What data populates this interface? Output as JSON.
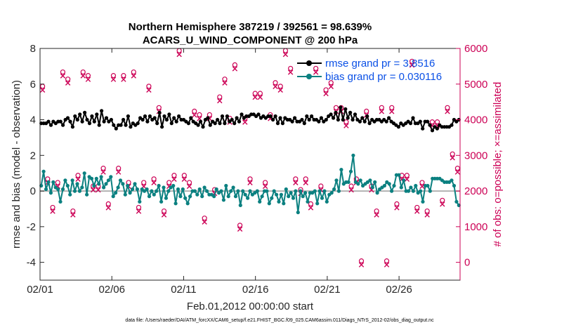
{
  "chart_data": {
    "type": "line",
    "title": "Northern Hemisphere 387219 / 392561 = 98.639%",
    "subtitle": "ACARS_U_WIND_COMPONENT @ 200 hPa",
    "xlabel": "Feb.01,2012 00:00:00 start",
    "ylabel": "rmse and bias (model - observation)",
    "ylabel_right": "# of obs: o=possible; ×=assimilated",
    "footer": "data file: /Users/raeder/DAI/ATM_forcXX/CAM6_setup/f.e21.FHIST_BGC.f09_025.CAM6assim.011/Diags_NTrS_2012-02/obs_diag_output.nc",
    "ylim": [
      -5,
      8
    ],
    "ylim_right": [
      -500,
      6000
    ],
    "xlim": [
      0,
      29.25
    ],
    "x_ticks": [
      0,
      5,
      10,
      15,
      20,
      25
    ],
    "x_tick_labels": [
      "02/01",
      "02/06",
      "02/11",
      "02/16",
      "02/21",
      "02/26"
    ],
    "y_ticks": [
      -4,
      -2,
      0,
      2,
      4,
      6,
      8
    ],
    "y_tick_labels": [
      "-4",
      "-2",
      "0",
      "2",
      "4",
      "6",
      "8"
    ],
    "y_ticks_right": [
      0,
      1000,
      2000,
      3000,
      4000,
      5000,
      6000
    ],
    "y_tick_labels_right": [
      "0",
      "1000",
      "2000",
      "3000",
      "4000",
      "5000",
      "6000"
    ],
    "reference_line_y": 0,
    "colors": {
      "rmse": "#000000",
      "bias": "#0b8080",
      "obs": "#cc0055",
      "zero": "#b3b3b3",
      "legend_text": "#0a50e6"
    },
    "series": [
      {
        "name": "rmse grand pr = 3.8516",
        "values": [
          3.8,
          3.8,
          3.8,
          3.9,
          3.7,
          3.9,
          3.8,
          3.9,
          3.9,
          3.7,
          4.0,
          4.1,
          3.9,
          3.6,
          4.2,
          4.0,
          4.3,
          3.9,
          4.4,
          4.0,
          3.8,
          4.2,
          3.9,
          4.3,
          3.7,
          4.5,
          3.9,
          4.1,
          3.9,
          4.0,
          3.7,
          3.5,
          3.7,
          3.7,
          4.0,
          3.7,
          4.2,
          3.6,
          3.8,
          3.7,
          3.8,
          4.1,
          4.0,
          4.2,
          3.9,
          4.2,
          4.0,
          4.1,
          3.8,
          4.4,
          3.6,
          4.2,
          4.0,
          4.3,
          3.8,
          4.1,
          3.9,
          4.2,
          4.0,
          4.0,
          3.9,
          3.8,
          4.1,
          3.9,
          3.8,
          3.7,
          3.9,
          3.6,
          4.0,
          4.1,
          3.7,
          3.9,
          3.8,
          4.0,
          3.8,
          4.2,
          3.8,
          4.2,
          3.9,
          4.0,
          3.8,
          4.1,
          3.9,
          4.3,
          4.1,
          4.2,
          4.2,
          4.3,
          4.3,
          4.2,
          4.3,
          4.1,
          4.2,
          4.1,
          4.2,
          4.2,
          4.0,
          4.2,
          3.8,
          4.1,
          3.8,
          4.1,
          4.0,
          4.0,
          3.9,
          4.1,
          3.9,
          3.9,
          4.0,
          3.8,
          4.2,
          4.0,
          4.2,
          4.0,
          4.0,
          3.9,
          4.1,
          3.9,
          4.0,
          4.2,
          4.3,
          4.1,
          4.4,
          4.0,
          4.7,
          4.0,
          4.6,
          4.1,
          4.4,
          4.0,
          4.3,
          4.0,
          3.9,
          4.1,
          3.9,
          4.2,
          3.8,
          4.0,
          3.9,
          4.0,
          4.0,
          3.9,
          4.0,
          3.9,
          4.1,
          3.9,
          3.8,
          3.7,
          3.6,
          3.8,
          3.7,
          3.8,
          3.9,
          3.8,
          4.1,
          3.8,
          3.8,
          3.9,
          3.5,
          3.9,
          3.9,
          3.7,
          3.4,
          3.6,
          3.5,
          3.7,
          3.6,
          3.6,
          3.6,
          3.6,
          3.7,
          4.0,
          3.9,
          4.0
        ]
      },
      {
        "name": "bias grand pr = 0.030116",
        "values": [
          0.3,
          1.1,
          0.1,
          0.5,
          -0.1,
          0.5,
          0.2,
          0.1,
          -0.6,
          0.1,
          0.6,
          0.3,
          -0.2,
          0.6,
          0.0,
          0.4,
          0.0,
          0.2,
          1.0,
          -0.2,
          0.8,
          0.7,
          0.3,
          0.7,
          0.4,
          0.8,
          0.2,
          0.4,
          0.6,
          0.8,
          -0.3,
          -0.1,
          0.2,
          0.6,
          0.4,
          -0.2,
          0.3,
          -0.1,
          0.1,
          0.4,
          0.1,
          -0.6,
          0.1,
          0.0,
          0.1,
          -0.3,
          0.0,
          -0.2,
          0.0,
          0.3,
          -0.6,
          0.2,
          -0.4,
          0.0,
          0.2,
          0.3,
          -0.7,
          0.1,
          -0.3,
          0.1,
          -0.4,
          -0.7,
          -0.3,
          0.0,
          0.0,
          -0.2,
          0.1,
          -0.3,
          0.2,
          0.0,
          -0.2,
          -0.2,
          -0.3,
          0.1,
          -0.1,
          0.0,
          -0.5,
          0.3,
          -0.3,
          0.0,
          0.2,
          -0.3,
          0.0,
          -0.8,
          0.0,
          -0.2,
          -0.4,
          0.0,
          -0.2,
          -0.1,
          0.0,
          -0.6,
          -0.3,
          0.0,
          0.0,
          -0.7,
          -0.4,
          0.0,
          -0.2,
          -0.6,
          -0.2,
          -0.7,
          0.1,
          -0.3,
          -0.1,
          -0.4,
          0.0,
          -1.2,
          0.0,
          -0.3,
          -0.1,
          -0.6,
          -0.1,
          -0.1,
          0.0,
          -0.7,
          0.0,
          -0.4,
          0.0,
          -0.6,
          -0.2,
          -0.1,
          0.1,
          0.6,
          0.0,
          1.2,
          0.4,
          0.5,
          0.5,
          1.1,
          2.0,
          0.5,
          0.4,
          0.6,
          0.3,
          0.4,
          0.5,
          0.6,
          0.2,
          0.5,
          -0.1,
          0.1,
          0.2,
          0.3,
          0.5,
          0.4,
          0.0,
          0.3,
          0.9,
          0.9,
          0.2,
          0.6,
          0.0,
          0.0,
          0.2,
          0.0,
          0.3,
          -0.1,
          0.0,
          -0.6,
          0.3,
          0.3,
          0.0,
          0.7,
          0.7,
          0.7,
          0.7,
          0.6,
          0.5,
          0.5,
          0.5,
          0.6,
          0.3,
          -0.6,
          -0.8
        ]
      }
    ],
    "obs_possible": [
      4900,
      2300,
      1500,
      2200,
      5300,
      5100,
      1400,
      2400,
      5300,
      5200,
      2100,
      2100,
      2600,
      1600,
      5200,
      2600,
      5200,
      2200,
      5300,
      1500,
      2200,
      4900,
      2300,
      4300,
      1400,
      2200,
      2400,
      5900,
      2400,
      2200,
      4200,
      4100,
      1200,
      4100,
      2000,
      4600,
      5100,
      4000,
      5500,
      1000,
      4000,
      2300,
      4700,
      4700,
      2200,
      4100,
      5000,
      4900,
      5900,
      5400,
      2300,
      2000,
      2300,
      1600,
      5400,
      2100,
      4800,
      5000,
      4300,
      4300,
      3900,
      2100,
      2300,
      0,
      4200,
      2100,
      1400,
      4300,
      0,
      4300,
      1600,
      2400,
      2400,
      5600,
      1500,
      2200,
      1400,
      3900,
      3900,
      1700,
      4300,
      3000,
      2600
    ]
  }
}
